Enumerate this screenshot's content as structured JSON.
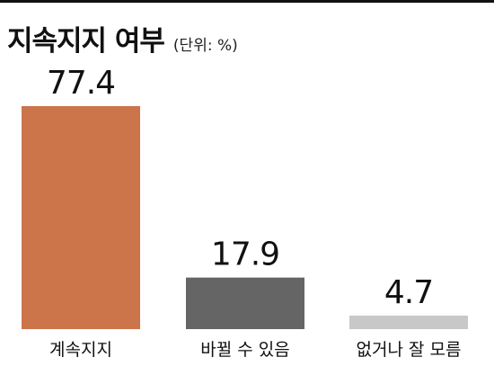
{
  "chart_data": {
    "type": "bar",
    "title": "지속지지 여부",
    "subtitle": "(단위: %)",
    "categories": [
      "계속지지",
      "바뀔 수 있음",
      "없거나 잘 모름"
    ],
    "values": [
      77.4,
      17.9,
      4.7
    ],
    "value_labels": [
      "77.4",
      "17.9",
      "4.7"
    ],
    "colors": [
      "#cc744a",
      "#656565",
      "#c8c8c8"
    ],
    "ylim": [
      0,
      77.4
    ],
    "grid": false,
    "legend": "none",
    "xlabel": "",
    "ylabel": ""
  }
}
